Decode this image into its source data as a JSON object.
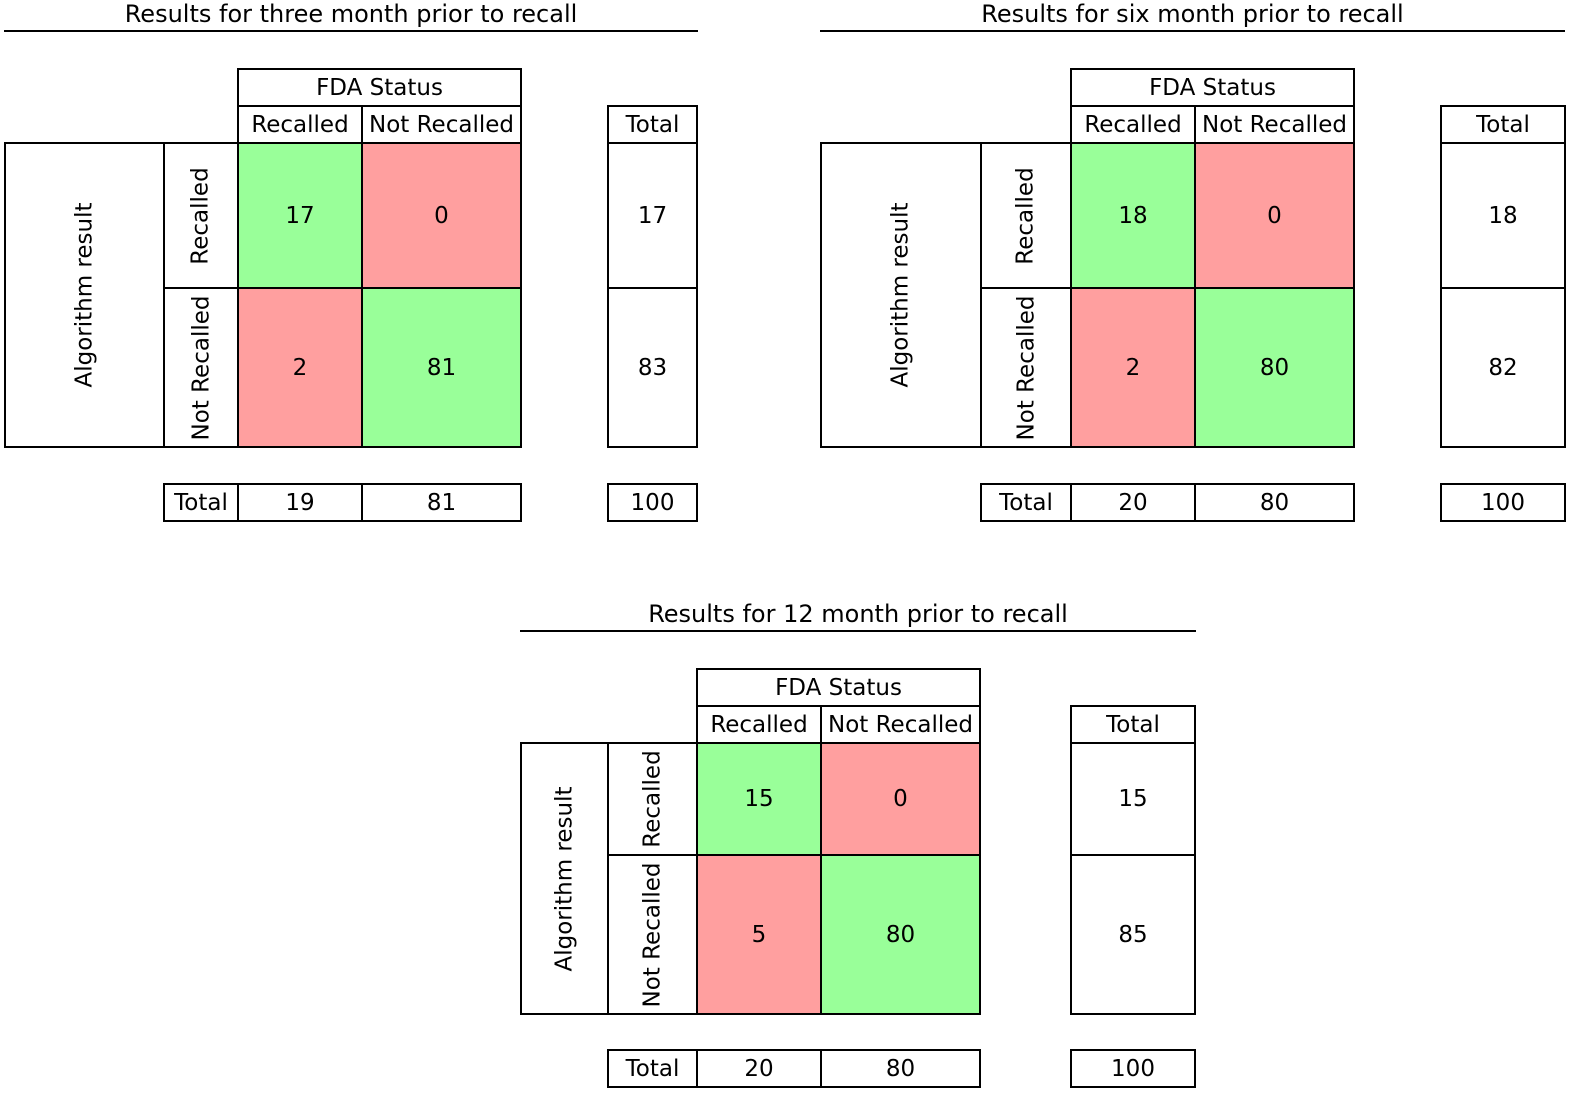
{
  "colors": {
    "correct": "#99ff99",
    "incorrect": "#ff9f9f",
    "border": "#000000"
  },
  "labels": {
    "fda_status": "FDA Status",
    "recalled": "Recalled",
    "not_recalled": "Not Recalled",
    "total": "Total",
    "algorithm_result": "Algorithm result"
  },
  "chart_data": [
    {
      "type": "table",
      "title": "Results for three month prior to recall",
      "col_header": "FDA Status",
      "row_header": "Algorithm result",
      "columns": [
        "Recalled",
        "Not Recalled"
      ],
      "rows": [
        "Recalled",
        "Not Recalled"
      ],
      "cells": [
        [
          "17",
          "0"
        ],
        [
          "2",
          "81"
        ]
      ],
      "row_totals": [
        "17",
        "83"
      ],
      "col_totals": [
        "19",
        "81"
      ],
      "grand_total": "100"
    },
    {
      "type": "table",
      "title": "Results for six month prior to recall",
      "col_header": "FDA Status",
      "row_header": "Algorithm result",
      "columns": [
        "Recalled",
        "Not Recalled"
      ],
      "rows": [
        "Recalled",
        "Not Recalled"
      ],
      "cells": [
        [
          "18",
          "0"
        ],
        [
          "2",
          "80"
        ]
      ],
      "row_totals": [
        "18",
        "82"
      ],
      "col_totals": [
        "20",
        "80"
      ],
      "grand_total": "100"
    },
    {
      "type": "table",
      "title": "Results for 12 month prior to recall",
      "col_header": "FDA Status",
      "row_header": "Algorithm result",
      "columns": [
        "Recalled",
        "Not Recalled"
      ],
      "rows": [
        "Recalled",
        "Not Recalled"
      ],
      "cells": [
        [
          "15",
          "0"
        ],
        [
          "5",
          "80"
        ]
      ],
      "row_totals": [
        "15",
        "85"
      ],
      "col_totals": [
        "20",
        "80"
      ],
      "grand_total": "100"
    }
  ]
}
